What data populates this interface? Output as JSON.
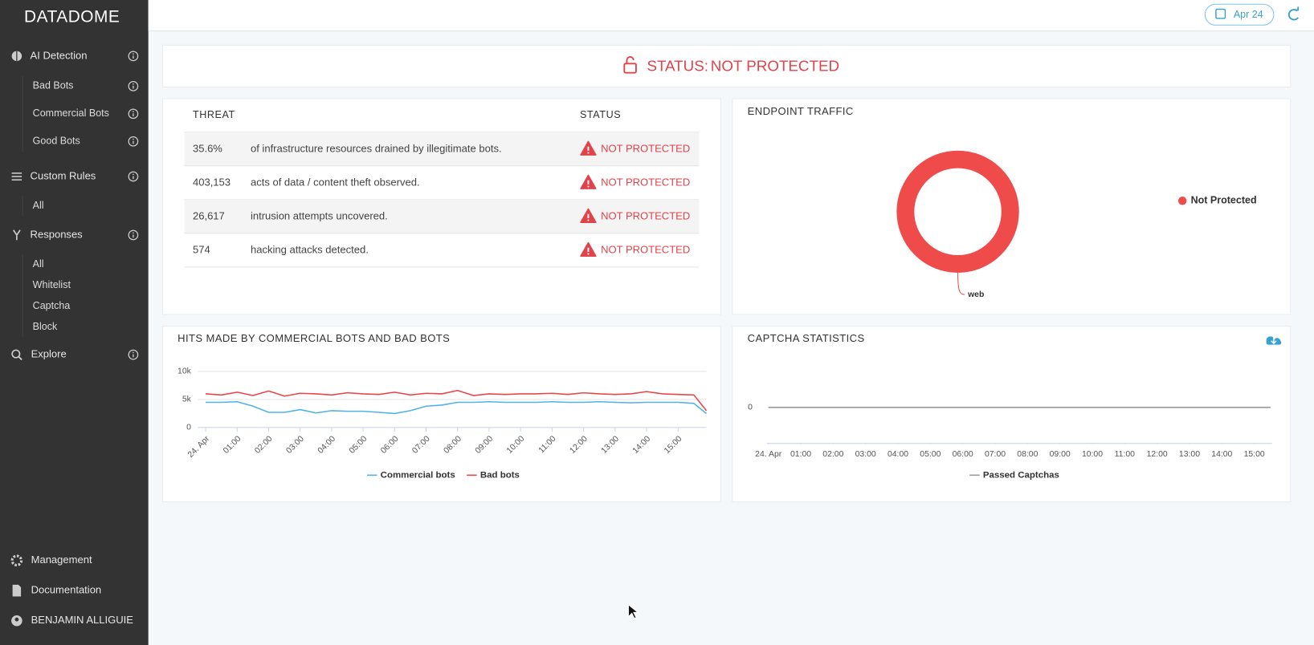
{
  "sidebar": {
    "logo": "DATADOME",
    "nav": [
      {
        "label": "AI Detection",
        "children": [
          "Bad Bots",
          "Commercial Bots",
          "Good Bots"
        ]
      },
      {
        "label": "Custom Rules",
        "children": [
          "All"
        ]
      },
      {
        "label": "Responses",
        "children": [
          "All",
          "Whitelist",
          "Captcha",
          "Block"
        ]
      },
      {
        "label": "Explore"
      }
    ],
    "footer": [
      "Management",
      "Documentation",
      "BENJAMIN ALLIGUIE"
    ]
  },
  "header": {
    "date": "Apr 24"
  },
  "status": {
    "label": "STATUS:",
    "value": "NOT PROTECTED"
  },
  "threats": {
    "columns": [
      "THREAT",
      "STATUS"
    ],
    "rows": [
      {
        "value": "35.6%",
        "text": "of infrastructure resources drained by illegitimate bots.",
        "status": "NOT PROTECTED"
      },
      {
        "value": "403,153",
        "text": "acts of data / content theft observed.",
        "status": "NOT PROTECTED"
      },
      {
        "value": "26,617",
        "text": "intrusion attempts uncovered.",
        "status": "NOT PROTECTED"
      },
      {
        "value": "574",
        "text": "hacking attacks detected.",
        "status": "NOT PROTECTED"
      }
    ]
  },
  "chart_data": [
    {
      "type": "line",
      "title": "HITS MADE BY COMMERCIAL BOTS AND BAD BOTS",
      "x": [
        0,
        0.5,
        1,
        1.5,
        2,
        2.5,
        3,
        3.5,
        4,
        4.5,
        5,
        5.5,
        6,
        6.5,
        7,
        7.5,
        8,
        8.5,
        9,
        9.5,
        10,
        10.5,
        11,
        11.5,
        12,
        12.5,
        13,
        13.5,
        14,
        14.5,
        15,
        15.5,
        15.9
      ],
      "series": [
        {
          "name": "Commercial bots",
          "color": "#4fb3e8",
          "values": [
            4500,
            4500,
            4600,
            3800,
            2700,
            2700,
            3200,
            2600,
            3000,
            2900,
            2900,
            2700,
            2500,
            3000,
            3800,
            4000,
            4500,
            4500,
            4600,
            4500,
            4500,
            4500,
            4600,
            4500,
            4500,
            4600,
            4500,
            4400,
            4500,
            4500,
            4500,
            4300,
            2500
          ]
        },
        {
          "name": "Bad bots",
          "color": "#e8464b",
          "values": [
            6000,
            5800,
            6300,
            5700,
            6500,
            5600,
            6100,
            6000,
            5800,
            6200,
            6000,
            5900,
            6300,
            5800,
            6100,
            6000,
            6600,
            5700,
            6000,
            5900,
            6000,
            6000,
            6100,
            5900,
            6200,
            6000,
            5900,
            6000,
            6400,
            6000,
            5900,
            5800,
            3000
          ]
        }
      ],
      "xlim": [
        -0.25,
        15.9
      ],
      "xticks": [
        {
          "value": 0,
          "label": "24. Apr"
        },
        {
          "value": 1,
          "label": "01:00"
        },
        {
          "value": 2,
          "label": "02:00"
        },
        {
          "value": 3,
          "label": "03:00"
        },
        {
          "value": 4,
          "label": "04:00"
        },
        {
          "value": 5,
          "label": "05:00"
        },
        {
          "value": 6,
          "label": "06:00"
        },
        {
          "value": 7,
          "label": "07:00"
        },
        {
          "value": 8,
          "label": "08:00"
        },
        {
          "value": 9,
          "label": "09:00"
        },
        {
          "value": 10,
          "label": "10:00"
        },
        {
          "value": 11,
          "label": "11:00"
        },
        {
          "value": 12,
          "label": "12:00"
        },
        {
          "value": 13,
          "label": "13:00"
        },
        {
          "value": 14,
          "label": "14:00"
        },
        {
          "value": 15,
          "label": "15:00"
        }
      ],
      "ylim": [
        0,
        10000
      ],
      "yticks": [
        0,
        {
          "value": 5000,
          "label": "5k"
        },
        {
          "value": 10000,
          "label": "10k"
        }
      ],
      "grid": true
    },
    {
      "type": "line",
      "title": "CAPTCHA STATISTICS",
      "x": [
        0,
        1,
        2,
        3,
        4,
        5,
        6,
        7,
        8,
        9,
        10,
        11,
        12,
        13,
        14,
        15,
        15.5
      ],
      "series": [
        {
          "name": "Passed Captchas",
          "color": "#9a9a9a",
          "values": [
            0,
            0,
            0,
            0,
            0,
            0,
            0,
            0,
            0,
            0,
            0,
            0,
            0,
            0,
            0,
            0,
            0
          ]
        }
      ],
      "xlim": [
        -0.05,
        15.55
      ],
      "xticks": [
        {
          "value": 0,
          "label": "24. Apr"
        },
        {
          "value": 1,
          "label": "01:00"
        },
        {
          "value": 2,
          "label": "02:00"
        },
        {
          "value": 3,
          "label": "03:00"
        },
        {
          "value": 4,
          "label": "04:00"
        },
        {
          "value": 5,
          "label": "05:00"
        },
        {
          "value": 6,
          "label": "06:00"
        },
        {
          "value": 7,
          "label": "07:00"
        },
        {
          "value": 8,
          "label": "08:00"
        },
        {
          "value": 9,
          "label": "09:00"
        },
        {
          "value": 10,
          "label": "10:00"
        },
        {
          "value": 11,
          "label": "11:00"
        },
        {
          "value": 12,
          "label": "12:00"
        },
        {
          "value": 13,
          "label": "13:00"
        },
        {
          "value": 14,
          "label": "14:00"
        },
        {
          "value": 15,
          "label": "15:00"
        }
      ],
      "ylim": [
        -1,
        1
      ],
      "yticks": [
        0
      ],
      "grid": false
    },
    {
      "type": "pie",
      "title": "ENDPOINT TRAFFIC",
      "categories": [
        "web"
      ],
      "series": [
        {
          "name": "Not Protected",
          "color": "#ef4b4b",
          "values": [
            100
          ]
        }
      ]
    }
  ]
}
